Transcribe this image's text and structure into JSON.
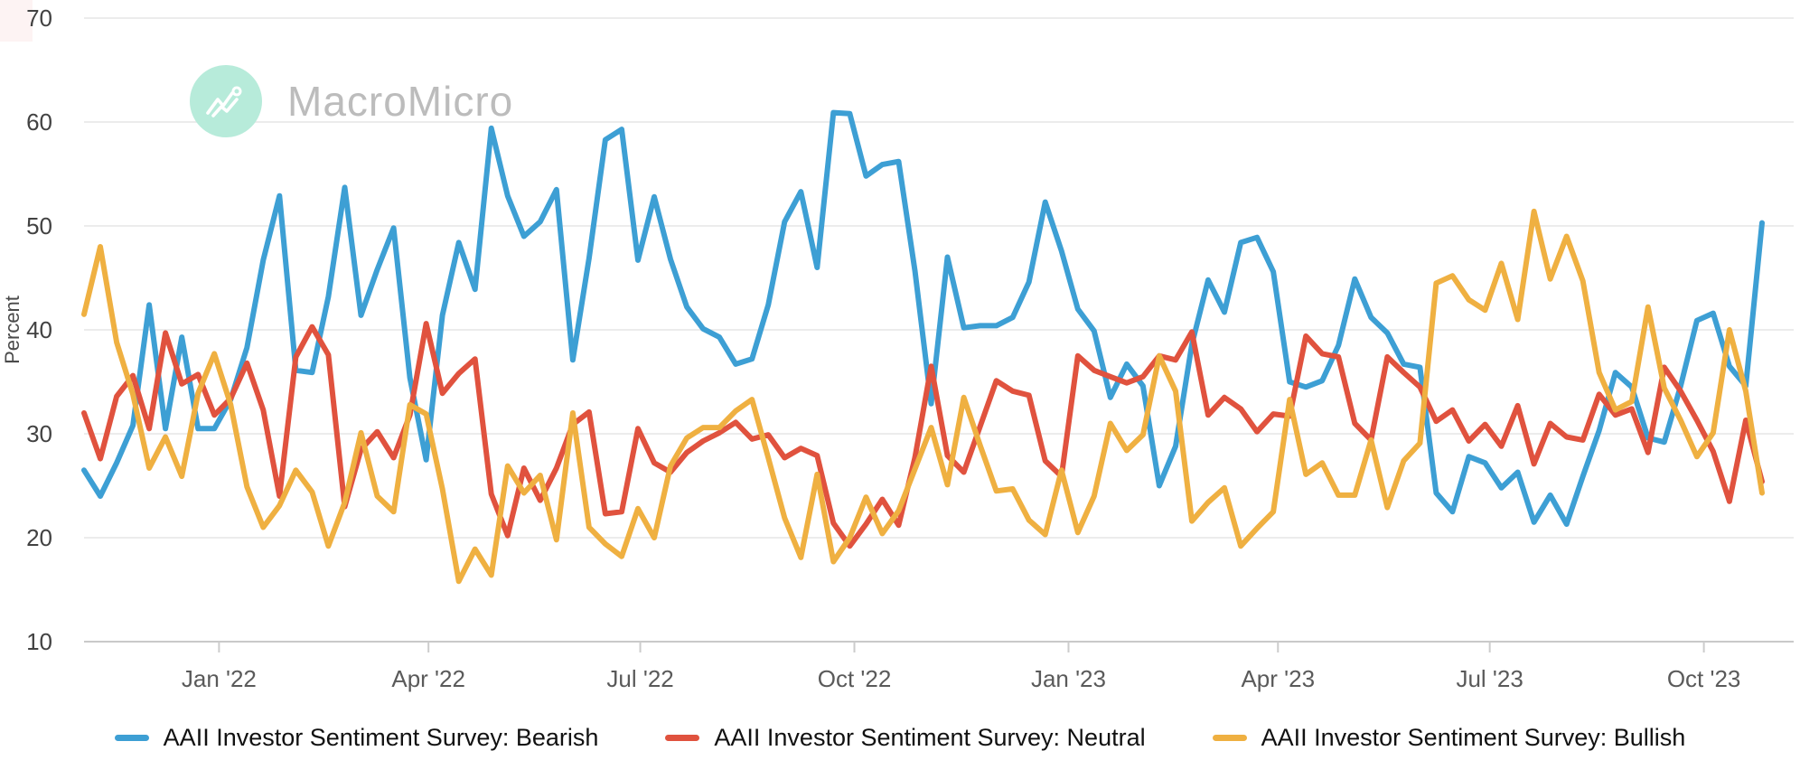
{
  "watermark": {
    "brand": "MacroMicro"
  },
  "y_axis": {
    "title": "Percent",
    "ticks": [
      70,
      60,
      50,
      40,
      30,
      20,
      10
    ]
  },
  "x_axis": {
    "ticks": [
      {
        "label": "Jan '22",
        "date": "2022-01-01"
      },
      {
        "label": "Apr '22",
        "date": "2022-04-01"
      },
      {
        "label": "Jul '22",
        "date": "2022-07-01"
      },
      {
        "label": "Oct '22",
        "date": "2022-10-01"
      },
      {
        "label": "Jan '23",
        "date": "2023-01-01"
      },
      {
        "label": "Apr '23",
        "date": "2023-04-01"
      },
      {
        "label": "Jul '23",
        "date": "2023-07-01"
      },
      {
        "label": "Oct '23",
        "date": "2023-10-01"
      }
    ]
  },
  "chart_data": {
    "type": "line",
    "title": "",
    "ylabel": "Percent",
    "ylim": [
      10,
      70
    ],
    "grid": "horizontal",
    "legend_position": "bottom",
    "x": [
      "2021-11-04",
      "2021-11-11",
      "2021-11-18",
      "2021-11-25",
      "2021-12-02",
      "2021-12-09",
      "2021-12-16",
      "2021-12-23",
      "2021-12-30",
      "2022-01-06",
      "2022-01-13",
      "2022-01-20",
      "2022-01-27",
      "2022-02-03",
      "2022-02-10",
      "2022-02-17",
      "2022-02-24",
      "2022-03-03",
      "2022-03-10",
      "2022-03-17",
      "2022-03-24",
      "2022-03-31",
      "2022-04-07",
      "2022-04-14",
      "2022-04-21",
      "2022-04-28",
      "2022-05-05",
      "2022-05-12",
      "2022-05-19",
      "2022-05-26",
      "2022-06-02",
      "2022-06-09",
      "2022-06-16",
      "2022-06-23",
      "2022-06-30",
      "2022-07-07",
      "2022-07-14",
      "2022-07-21",
      "2022-07-28",
      "2022-08-04",
      "2022-08-11",
      "2022-08-18",
      "2022-08-25",
      "2022-09-01",
      "2022-09-08",
      "2022-09-15",
      "2022-09-22",
      "2022-09-29",
      "2022-10-06",
      "2022-10-13",
      "2022-10-20",
      "2022-10-27",
      "2022-11-03",
      "2022-11-10",
      "2022-11-17",
      "2022-11-24",
      "2022-12-01",
      "2022-12-08",
      "2022-12-15",
      "2022-12-22",
      "2022-12-29",
      "2023-01-05",
      "2023-01-12",
      "2023-01-19",
      "2023-01-26",
      "2023-02-02",
      "2023-02-09",
      "2023-02-16",
      "2023-02-23",
      "2023-03-02",
      "2023-03-09",
      "2023-03-16",
      "2023-03-23",
      "2023-03-30",
      "2023-04-06",
      "2023-04-13",
      "2023-04-20",
      "2023-04-27",
      "2023-05-04",
      "2023-05-11",
      "2023-05-18",
      "2023-05-25",
      "2023-06-01",
      "2023-06-08",
      "2023-06-15",
      "2023-06-22",
      "2023-06-29",
      "2023-07-06",
      "2023-07-13",
      "2023-07-20",
      "2023-07-27",
      "2023-08-03",
      "2023-08-10",
      "2023-08-17",
      "2023-08-24",
      "2023-08-31",
      "2023-09-07",
      "2023-09-14",
      "2023-09-21",
      "2023-09-28",
      "2023-10-05",
      "2023-10-12",
      "2023-10-19",
      "2023-10-26"
    ],
    "series": [
      {
        "name": "AAII Investor Sentiment Survey: Bearish",
        "color": "#3D9FD4",
        "values": [
          26.5,
          24.0,
          27.2,
          30.8,
          42.4,
          30.5,
          39.3,
          30.5,
          30.5,
          33.3,
          38.3,
          46.7,
          52.9,
          36.1,
          35.9,
          43.2,
          53.7,
          41.4,
          45.8,
          49.8,
          35.4,
          27.5,
          41.4,
          48.4,
          43.9,
          59.4,
          52.9,
          49.0,
          50.4,
          53.5,
          37.1,
          46.9,
          58.3,
          59.3,
          46.7,
          52.8,
          46.8,
          42.2,
          40.1,
          39.3,
          36.7,
          37.2,
          42.4,
          50.4,
          53.3,
          46.0,
          60.9,
          60.8,
          54.8,
          55.9,
          56.2,
          45.7,
          32.9,
          47.0,
          40.2,
          40.4,
          40.4,
          41.2,
          44.6,
          52.3,
          47.6,
          42.0,
          39.9,
          33.5,
          36.7,
          34.6,
          25.0,
          28.8,
          38.6,
          44.8,
          41.7,
          48.4,
          48.9,
          45.6,
          35.0,
          34.5,
          35.1,
          38.5,
          44.9,
          41.2,
          39.7,
          36.7,
          36.4,
          24.3,
          22.5,
          27.8,
          27.2,
          24.8,
          26.3,
          21.5,
          24.1,
          21.3,
          25.9,
          30.3,
          35.9,
          34.5,
          29.6,
          29.2,
          34.6,
          40.9,
          41.6,
          36.5,
          34.6,
          50.3
        ]
      },
      {
        "name": "AAII Investor Sentiment Survey: Neutral",
        "color": "#E0523E",
        "values": [
          32.0,
          27.6,
          33.6,
          35.6,
          30.5,
          39.7,
          34.8,
          35.7,
          31.8,
          33.4,
          36.8,
          32.3,
          24.0,
          37.4,
          40.3,
          37.6,
          23.0,
          28.5,
          30.2,
          27.7,
          31.8,
          40.6,
          33.9,
          35.8,
          37.2,
          24.2,
          20.2,
          26.7,
          23.6,
          26.7,
          30.9,
          32.1,
          22.3,
          22.5,
          30.5,
          27.2,
          26.3,
          28.2,
          29.3,
          30.1,
          31.1,
          29.5,
          29.9,
          27.7,
          28.6,
          27.9,
          21.4,
          19.2,
          21.3,
          23.7,
          21.2,
          27.7,
          36.5,
          27.9,
          26.3,
          30.7,
          35.1,
          34.1,
          33.7,
          27.4,
          25.9,
          37.5,
          36.1,
          35.5,
          34.9,
          35.5,
          37.5,
          37.1,
          39.8,
          31.8,
          33.5,
          32.4,
          30.2,
          31.9,
          31.7,
          39.4,
          37.7,
          37.4,
          31.0,
          29.4,
          37.4,
          35.9,
          34.5,
          31.2,
          32.3,
          29.3,
          30.9,
          28.8,
          32.7,
          27.1,
          31.0,
          29.7,
          29.4,
          33.8,
          31.8,
          32.4,
          28.2,
          36.4,
          34.1,
          31.3,
          28.3,
          23.5,
          31.3,
          25.4
        ]
      },
      {
        "name": "AAII Investor Sentiment Survey: Bullish",
        "color": "#EFB041",
        "values": [
          41.5,
          48.0,
          38.8,
          33.8,
          26.7,
          29.7,
          25.9,
          33.9,
          37.7,
          32.8,
          24.9,
          21.0,
          23.1,
          26.5,
          24.4,
          19.2,
          23.4,
          30.1,
          24.0,
          22.5,
          32.8,
          31.9,
          24.7,
          15.8,
          18.9,
          16.4,
          26.9,
          24.3,
          26.0,
          19.8,
          32.0,
          21.0,
          19.4,
          18.2,
          22.8,
          20.0,
          26.9,
          29.6,
          30.6,
          30.6,
          32.2,
          33.3,
          27.7,
          21.9,
          18.1,
          26.1,
          17.7,
          20.0,
          23.9,
          20.4,
          22.6,
          26.6,
          30.6,
          25.1,
          33.5,
          28.9,
          24.5,
          24.7,
          21.7,
          20.3,
          26.5,
          20.5,
          24.0,
          31.0,
          28.4,
          29.9,
          37.5,
          34.1,
          21.6,
          23.4,
          24.8,
          19.2,
          20.9,
          22.5,
          33.3,
          26.1,
          27.2,
          24.1,
          24.1,
          29.4,
          22.9,
          27.4,
          29.1,
          44.5,
          45.2,
          42.9,
          41.9,
          46.4,
          41.0,
          51.4,
          44.9,
          49.0,
          44.7,
          35.9,
          32.3,
          33.1,
          42.2,
          34.4,
          31.3,
          27.8,
          30.1,
          40.0,
          34.1,
          24.3
        ]
      }
    ],
    "colors": {
      "gridline": "#e5e5e5",
      "axis_line": "#c9c9c9",
      "tick": "#cccccc"
    }
  }
}
